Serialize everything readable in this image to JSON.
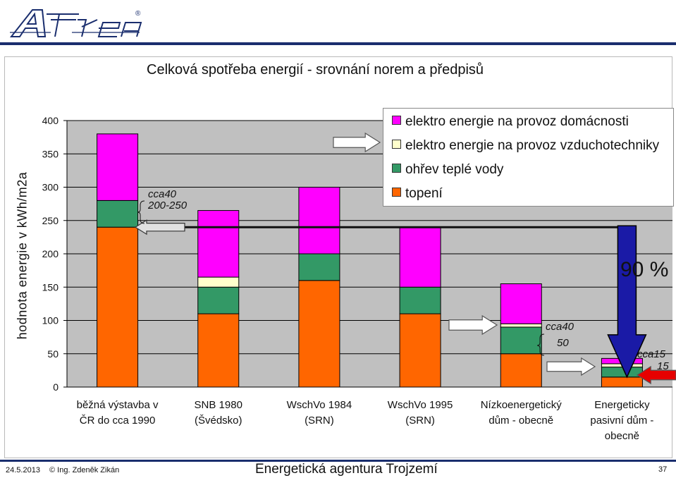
{
  "logo": {
    "text": "Atrea",
    "registered": "®"
  },
  "chart_data": {
    "type": "bar",
    "stacked": true,
    "title": "Celková spotřeba energií - srovnání norem a předpisů",
    "ylabel": "hodnota energie v kWh/m2a",
    "xlabel": "",
    "ylim": [
      0,
      400
    ],
    "yticks": [
      0,
      50,
      100,
      150,
      200,
      250,
      300,
      350,
      400
    ],
    "categories": [
      [
        "běžná výstavba v",
        "ČR do cca 1990"
      ],
      [
        "SNB 1980",
        "(Švédsko)"
      ],
      [
        "WschVo 1984",
        "(SRN)"
      ],
      [
        "WschVo 1995",
        "(SRN)"
      ],
      [
        "Nízkoenergetický",
        "dům - obecně"
      ],
      [
        "Energeticky",
        "pasivní dům -",
        "obecně"
      ]
    ],
    "series": [
      {
        "name": "topení",
        "color": "#ff6600",
        "values": [
          240,
          110,
          160,
          110,
          50,
          15
        ]
      },
      {
        "name": "ohřev teplé vody",
        "color": "#339966",
        "values": [
          40,
          40,
          40,
          40,
          40,
          15
        ]
      },
      {
        "name": "elektro energie na provoz vzduchotechniky",
        "color": "#ffffcc",
        "values": [
          0,
          15,
          0,
          0,
          5,
          5
        ]
      },
      {
        "name": "elektro energie na provoz domácnosti",
        "color": "#ff00ff",
        "values": [
          100,
          100,
          100,
          90,
          60,
          8
        ]
      }
    ],
    "legend": [
      {
        "label": "elektro energie na provoz domácnosti",
        "color": "#ff00ff"
      },
      {
        "label": "elektro energie na provoz vzduchotechniky",
        "color": "#ffffcc"
      },
      {
        "label": "ohřev teplé vody",
        "color": "#339966"
      },
      {
        "label": "topení",
        "color": "#ff6600"
      }
    ],
    "annotations": {
      "note1_a": "cca40",
      "note1_b": "200-250",
      "note2_a": "cca40",
      "note2_b": "50",
      "note3_a": "cca15",
      "note3_b": "15",
      "reduction": "90 %"
    }
  },
  "footer": {
    "date": "24.5.2013",
    "author": "© Ing. Zdeněk Zikán",
    "agency": "Energetická agentura Trojzemí",
    "page": "37"
  }
}
